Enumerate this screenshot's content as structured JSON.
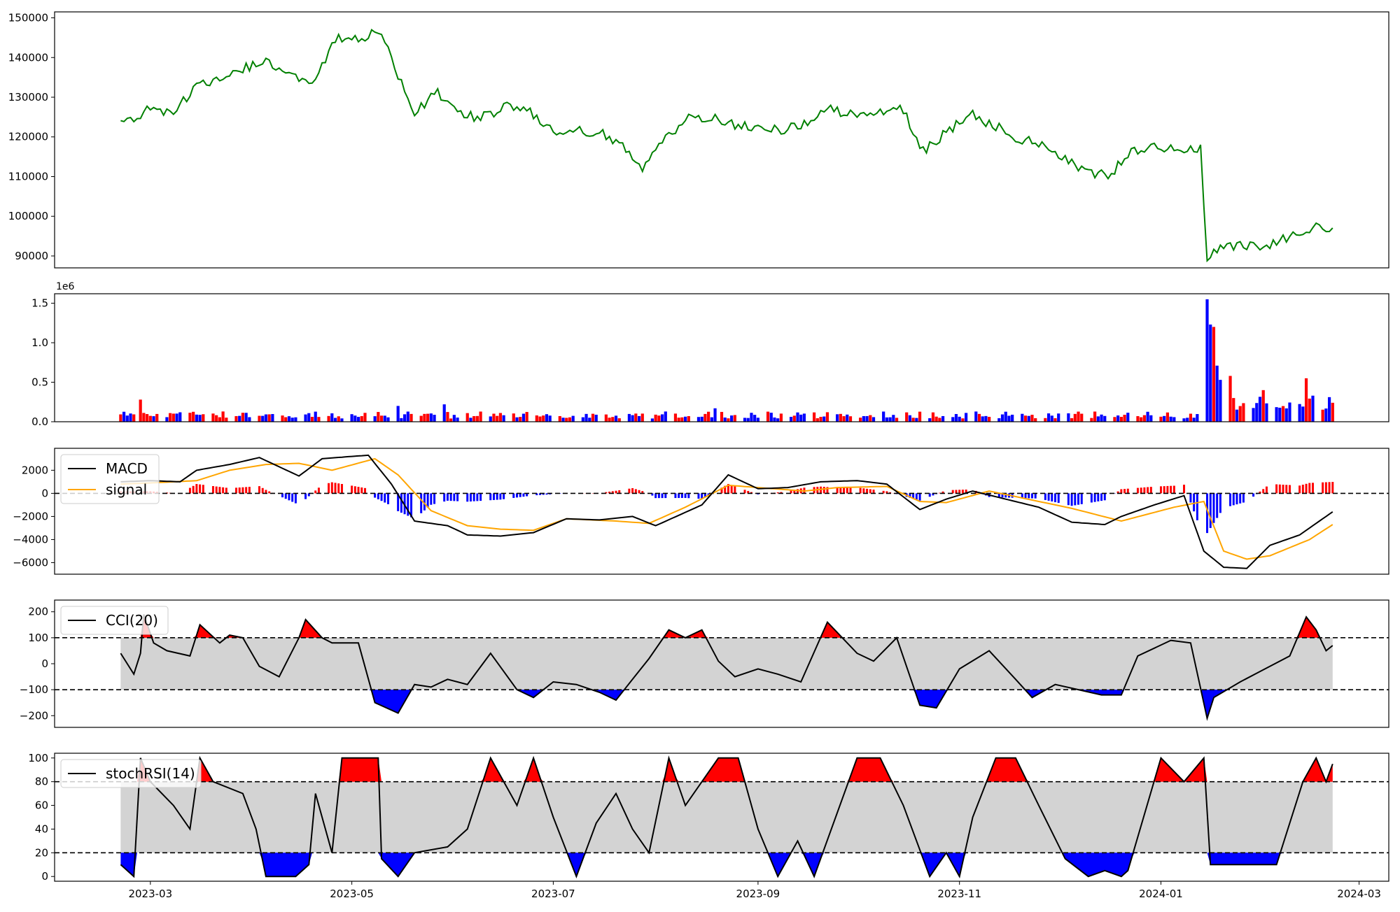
{
  "chart_data": [
    {
      "panel": "price",
      "type": "line",
      "title": "",
      "xlabel": "",
      "ylabel": "",
      "ylim": [
        87000,
        151500
      ],
      "yticks": [
        90000,
        100000,
        110000,
        120000,
        130000,
        140000,
        150000
      ],
      "ytick_labels": [
        "90000",
        "100000",
        "110000",
        "120000",
        "130000",
        "140000",
        "150000"
      ],
      "grid": false,
      "series": [
        {
          "color": "#008000",
          "x": [
            "2023-02-20",
            "2023-03-01",
            "2023-03-08",
            "2023-03-15",
            "2023-03-22",
            "2023-03-29",
            "2023-04-05",
            "2023-04-12",
            "2023-04-19",
            "2023-04-26",
            "2023-05-03",
            "2023-05-10",
            "2023-05-15",
            "2023-05-20",
            "2023-05-27",
            "2023-06-03",
            "2023-06-10",
            "2023-06-17",
            "2023-06-24",
            "2023-07-01",
            "2023-07-08",
            "2023-07-15",
            "2023-07-22",
            "2023-07-28",
            "2023-08-05",
            "2023-08-12",
            "2023-08-19",
            "2023-08-26",
            "2023-09-02",
            "2023-09-09",
            "2023-09-16",
            "2023-09-23",
            "2023-09-30",
            "2023-10-07",
            "2023-10-14",
            "2023-10-21",
            "2023-10-28",
            "2023-11-04",
            "2023-11-11",
            "2023-11-18",
            "2023-11-25",
            "2023-12-02",
            "2023-12-09",
            "2023-12-16",
            "2023-12-23",
            "2023-12-30",
            "2024-01-06",
            "2024-01-13",
            "2024-01-15",
            "2024-01-20",
            "2024-01-27",
            "2024-02-03",
            "2024-02-10",
            "2024-02-17",
            "2024-02-22"
          ],
          "y": [
            123000,
            127000,
            126000,
            133000,
            134000,
            137000,
            139000,
            136000,
            134000,
            144500,
            145000,
            146500,
            135000,
            126500,
            131000,
            125500,
            125000,
            127500,
            126500,
            121000,
            121500,
            121000,
            118000,
            112500,
            121000,
            125000,
            124500,
            122500,
            123000,
            121500,
            124000,
            127000,
            125500,
            126000,
            128000,
            116500,
            121000,
            126000,
            123000,
            120000,
            118000,
            115500,
            111500,
            110000,
            116000,
            117500,
            116500,
            117000,
            90000,
            93000,
            92500,
            93000,
            95500,
            97500,
            96500
          ]
        }
      ]
    },
    {
      "panel": "volume",
      "type": "bar",
      "title": "",
      "ylim": [
        0,
        1620000
      ],
      "yticks": [
        0,
        500000,
        1000000,
        1500000
      ],
      "ytick_labels": [
        "0.0",
        "0.5",
        "1.0",
        "1.5"
      ],
      "offset_label": "1e6",
      "colors": {
        "up": "#ff0000",
        "down": "#0000ff"
      },
      "highlights": [
        {
          "x": "2023-02-26",
          "value": 280000,
          "color": "red"
        },
        {
          "x": "2023-05-15",
          "value": 200000,
          "color": "blue"
        },
        {
          "x": "2023-05-29",
          "value": 220000,
          "color": "blue"
        },
        {
          "x": "2023-08-19",
          "value": 170000,
          "color": "blue"
        },
        {
          "x": "2024-01-15",
          "value": 1550000,
          "color": "blue"
        },
        {
          "x": "2024-01-16",
          "value": 1230000,
          "color": "blue"
        },
        {
          "x": "2024-01-17",
          "value": 1200000,
          "color": "red"
        },
        {
          "x": "2024-01-18",
          "value": 710000,
          "color": "blue"
        },
        {
          "x": "2024-01-19",
          "value": 530000,
          "color": "blue"
        },
        {
          "x": "2024-01-22",
          "value": 580000,
          "color": "red"
        },
        {
          "x": "2024-01-23",
          "value": 300000,
          "color": "red"
        },
        {
          "x": "2024-02-01",
          "value": 400000,
          "color": "red"
        },
        {
          "x": "2024-02-14",
          "value": 550000,
          "color": "red"
        },
        {
          "x": "2024-02-16",
          "value": 330000,
          "color": "blue"
        },
        {
          "x": "2024-02-22",
          "value": 240000,
          "color": "red"
        }
      ]
    },
    {
      "panel": "macd",
      "type": "line",
      "title": "",
      "ylim": [
        -7000,
        3900
      ],
      "yticks": [
        -6000,
        -4000,
        -2000,
        0,
        2000
      ],
      "ytick_labels": [
        "−6000",
        "−4000",
        "−2000",
        "0",
        "2000"
      ],
      "legend": {
        "entries": [
          "MACD",
          "signal"
        ],
        "position": "upper left"
      },
      "reference_lines": [
        0
      ],
      "series": [
        {
          "name": "MACD",
          "color": "#000000",
          "x": [
            "2023-02-20",
            "2023-03-01",
            "2023-03-10",
            "2023-03-15",
            "2023-03-25",
            "2023-04-03",
            "2023-04-15",
            "2023-04-22",
            "2023-05-01",
            "2023-05-06",
            "2023-05-13",
            "2023-05-20",
            "2023-05-30",
            "2023-06-05",
            "2023-06-15",
            "2023-06-25",
            "2023-07-05",
            "2023-07-15",
            "2023-07-25",
            "2023-08-01",
            "2023-08-15",
            "2023-08-23",
            "2023-09-01",
            "2023-09-10",
            "2023-09-20",
            "2023-10-01",
            "2023-10-10",
            "2023-10-20",
            "2023-10-28",
            "2023-11-05",
            "2023-11-15",
            "2023-11-25",
            "2023-12-05",
            "2023-12-15",
            "2023-12-20",
            "2023-12-30",
            "2024-01-08",
            "2024-01-14",
            "2024-01-20",
            "2024-01-27",
            "2024-02-03",
            "2024-02-12",
            "2024-02-22"
          ],
          "y": [
            1000,
            1100,
            1000,
            2000,
            2500,
            3100,
            1500,
            3000,
            3200,
            3300,
            800,
            -2400,
            -2800,
            -3600,
            -3700,
            -3400,
            -2200,
            -2300,
            -2000,
            -2800,
            -1000,
            1600,
            400,
            500,
            1000,
            1100,
            800,
            -1400,
            -500,
            200,
            -500,
            -1200,
            -2500,
            -2700,
            -2000,
            -1000,
            -200,
            -5000,
            -6400,
            -6500,
            -4500,
            -3600,
            -1600
          ]
        },
        {
          "name": "signal",
          "color": "#ffa500",
          "x": [
            "2023-02-20",
            "2023-03-01",
            "2023-03-15",
            "2023-03-25",
            "2023-04-05",
            "2023-04-15",
            "2023-04-25",
            "2023-05-08",
            "2023-05-15",
            "2023-05-25",
            "2023-06-05",
            "2023-06-15",
            "2023-06-25",
            "2023-07-05",
            "2023-07-20",
            "2023-07-30",
            "2023-08-10",
            "2023-08-23",
            "2023-09-01",
            "2023-09-15",
            "2023-09-25",
            "2023-10-10",
            "2023-10-20",
            "2023-10-28",
            "2023-11-10",
            "2023-11-20",
            "2023-12-05",
            "2023-12-20",
            "2024-01-05",
            "2024-01-14",
            "2024-01-20",
            "2024-01-27",
            "2024-02-03",
            "2024-02-15",
            "2024-02-22"
          ],
          "y": [
            800,
            900,
            1100,
            2000,
            2500,
            2600,
            2000,
            3000,
            1600,
            -1500,
            -2800,
            -3100,
            -3200,
            -2200,
            -2400,
            -2600,
            -1200,
            700,
            500,
            200,
            500,
            600,
            -700,
            -800,
            200,
            -400,
            -1300,
            -2400,
            -1200,
            -700,
            -5000,
            -5700,
            -5400,
            -4000,
            -2700
          ]
        }
      ],
      "histogram": {
        "colors": {
          "positive": "#ff0000",
          "negative": "#0000ff"
        }
      }
    },
    {
      "panel": "cci",
      "type": "area",
      "title": "",
      "ylim": [
        -245,
        245
      ],
      "yticks": [
        -200,
        -100,
        0,
        100,
        200
      ],
      "ytick_labels": [
        "−200",
        "−100",
        "0",
        "100",
        "200"
      ],
      "legend": {
        "entries": [
          "CCI(20)"
        ],
        "position": "upper left"
      },
      "reference_lines": [
        100,
        -100
      ],
      "band": [
        -100,
        100
      ],
      "series": [
        {
          "name": "CCI(20)",
          "color": "#000000",
          "x": [
            "2023-02-20",
            "2023-02-24",
            "2023-02-26",
            "2023-02-27",
            "2023-03-02",
            "2023-03-06",
            "2023-03-13",
            "2023-03-16",
            "2023-03-22",
            "2023-03-25",
            "2023-03-29",
            "2023-04-03",
            "2023-04-09",
            "2023-04-15",
            "2023-04-17",
            "2023-04-22",
            "2023-04-25",
            "2023-05-03",
            "2023-05-08",
            "2023-05-15",
            "2023-05-20",
            "2023-05-25",
            "2023-05-30",
            "2023-06-05",
            "2023-06-12",
            "2023-06-20",
            "2023-06-25",
            "2023-07-01",
            "2023-07-08",
            "2023-07-15",
            "2023-07-20",
            "2023-07-25",
            "2023-07-30",
            "2023-08-05",
            "2023-08-10",
            "2023-08-15",
            "2023-08-20",
            "2023-08-25",
            "2023-09-01",
            "2023-09-07",
            "2023-09-14",
            "2023-09-22",
            "2023-10-01",
            "2023-10-06",
            "2023-10-13",
            "2023-10-20",
            "2023-10-25",
            "2023-11-01",
            "2023-11-10",
            "2023-11-18",
            "2023-11-23",
            "2023-11-30",
            "2023-12-07",
            "2023-12-14",
            "2023-12-20",
            "2023-12-25",
            "2024-01-04",
            "2024-01-10",
            "2024-01-15",
            "2024-01-17",
            "2024-01-25",
            "2024-01-31",
            "2024-02-09",
            "2024-02-14",
            "2024-02-17",
            "2024-02-20",
            "2024-02-22"
          ],
          "y": [
            40,
            -40,
            40,
            190,
            80,
            50,
            30,
            150,
            80,
            110,
            100,
            -10,
            -50,
            100,
            170,
            100,
            80,
            80,
            -150,
            -190,
            -80,
            -90,
            -60,
            -80,
            40,
            -100,
            -130,
            -70,
            -80,
            -110,
            -140,
            -60,
            20,
            130,
            100,
            130,
            10,
            -50,
            -20,
            -40,
            -70,
            160,
            40,
            10,
            100,
            -160,
            -170,
            -20,
            50,
            -60,
            -130,
            -80,
            -100,
            -120,
            -120,
            30,
            90,
            80,
            -210,
            -130,
            -70,
            -30,
            30,
            180,
            130,
            50,
            70
          ]
        }
      ],
      "fill_colors": {
        "above": "#ff0000",
        "below": "#0000ff",
        "band": "#d3d3d3"
      }
    },
    {
      "panel": "stochrsi",
      "type": "area",
      "title": "",
      "xlabel": "",
      "ylim": [
        -4,
        104
      ],
      "yticks": [
        0,
        20,
        40,
        60,
        80,
        100
      ],
      "ytick_labels": [
        "0",
        "20",
        "40",
        "60",
        "80",
        "100"
      ],
      "legend": {
        "entries": [
          "stochRSI(14)"
        ],
        "position": "upper left"
      },
      "reference_lines": [
        80,
        20
      ],
      "band": [
        20,
        80
      ],
      "xticks": [
        "2023-03-01",
        "2023-05-01",
        "2023-07-01",
        "2023-09-01",
        "2023-11-01",
        "2024-01-01",
        "2024-03-01"
      ],
      "xtick_labels": [
        "2023-03",
        "2023-05",
        "2023-07",
        "2023-09",
        "2023-11",
        "2024-01",
        "2024-03"
      ],
      "xlim": [
        "2023-01-31",
        "2024-03-10"
      ],
      "series": [
        {
          "name": "stochRSI(14)",
          "color": "#000000",
          "x": [
            "2023-02-20",
            "2023-02-24",
            "2023-02-26",
            "2023-03-01",
            "2023-03-08",
            "2023-03-13",
            "2023-03-16",
            "2023-03-20",
            "2023-03-29",
            "2023-04-02",
            "2023-04-05",
            "2023-04-14",
            "2023-04-18",
            "2023-04-20",
            "2023-04-25",
            "2023-04-28",
            "2023-05-01",
            "2023-05-09",
            "2023-05-10",
            "2023-05-15",
            "2023-05-20",
            "2023-05-30",
            "2023-06-05",
            "2023-06-12",
            "2023-06-20",
            "2023-06-25",
            "2023-07-01",
            "2023-07-08",
            "2023-07-14",
            "2023-07-20",
            "2023-07-25",
            "2023-07-30",
            "2023-08-05",
            "2023-08-10",
            "2023-08-20",
            "2023-08-26",
            "2023-09-01",
            "2023-09-07",
            "2023-09-13",
            "2023-09-18",
            "2023-10-01",
            "2023-10-08",
            "2023-10-15",
            "2023-10-23",
            "2023-10-28",
            "2023-11-01",
            "2023-11-05",
            "2023-11-12",
            "2023-11-18",
            "2023-11-25",
            "2023-12-03",
            "2023-12-10",
            "2023-12-15",
            "2023-12-20",
            "2023-12-22",
            "2024-01-01",
            "2024-01-08",
            "2024-01-14",
            "2024-01-16",
            "2024-01-25",
            "2024-02-01",
            "2024-02-05",
            "2024-02-13",
            "2024-02-17",
            "2024-02-20",
            "2024-02-22"
          ],
          "y": [
            10,
            0,
            100,
            80,
            60,
            40,
            100,
            80,
            70,
            40,
            0,
            0,
            10,
            70,
            20,
            100,
            100,
            100,
            15,
            0,
            20,
            25,
            40,
            100,
            60,
            100,
            50,
            0,
            45,
            70,
            40,
            20,
            100,
            60,
            100,
            100,
            40,
            0,
            30,
            0,
            100,
            100,
            60,
            0,
            20,
            0,
            50,
            100,
            100,
            60,
            15,
            0,
            5,
            0,
            5,
            100,
            80,
            100,
            10,
            10,
            10,
            10,
            80,
            100,
            80,
            95
          ]
        }
      ],
      "fill_colors": {
        "above": "#ff0000",
        "below": "#0000ff",
        "band": "#d3d3d3"
      }
    }
  ]
}
